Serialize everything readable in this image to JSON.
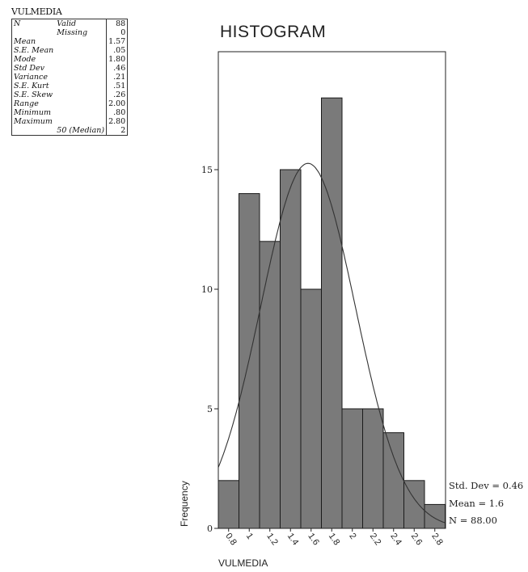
{
  "stats": {
    "title": "VULMEDIA",
    "rows": [
      {
        "label": "N",
        "sub": "Valid",
        "value": "88"
      },
      {
        "label": "",
        "sub": "Missing",
        "value": "0"
      },
      {
        "label": "Mean",
        "sub": "",
        "value": "1.57"
      },
      {
        "label": "S.E. Mean",
        "sub": "",
        "value": ".05"
      },
      {
        "label": "Mode",
        "sub": "",
        "value": "1.80"
      },
      {
        "label": "Std Dev",
        "sub": "",
        "value": ".46"
      },
      {
        "label": "Variance",
        "sub": "",
        "value": ".21"
      },
      {
        "label": "S.E. Kurt",
        "sub": "",
        "value": ".51"
      },
      {
        "label": "S.E. Skew",
        "sub": "",
        "value": ".26"
      },
      {
        "label": "Range",
        "sub": "",
        "value": "2.00"
      },
      {
        "label": "Minimum",
        "sub": "",
        "value": ".80"
      },
      {
        "label": "Maximum",
        "sub": "",
        "value": "2.80"
      },
      {
        "label": "",
        "sub": "50 (Median)",
        "value": "2"
      }
    ]
  },
  "chart_data": {
    "type": "bar",
    "title": "HISTOGRAM",
    "xlabel": "VULMEDIA",
    "ylabel": "Frequency",
    "categories": [
      "0.8",
      "1",
      "1.2",
      "1.4",
      "1.6",
      "1.8",
      "2",
      "2.2",
      "2.4",
      "2.6",
      "2.8"
    ],
    "values": [
      2,
      14,
      12,
      15,
      10,
      18,
      5,
      5,
      4,
      2,
      1
    ],
    "ylim": [
      0,
      20
    ],
    "yticks": [
      "0",
      "5",
      "10",
      "15"
    ],
    "xlim": [
      0.7,
      2.9
    ],
    "normal_curve": {
      "mean": 1.57,
      "std": 0.46,
      "n": 88,
      "bin_width": 0.2
    },
    "grid": false,
    "legend": [
      "Std. Dev = 0.46",
      "Mean = 1.6",
      "N = 88.00"
    ],
    "legend_placement": "right-bottom"
  }
}
